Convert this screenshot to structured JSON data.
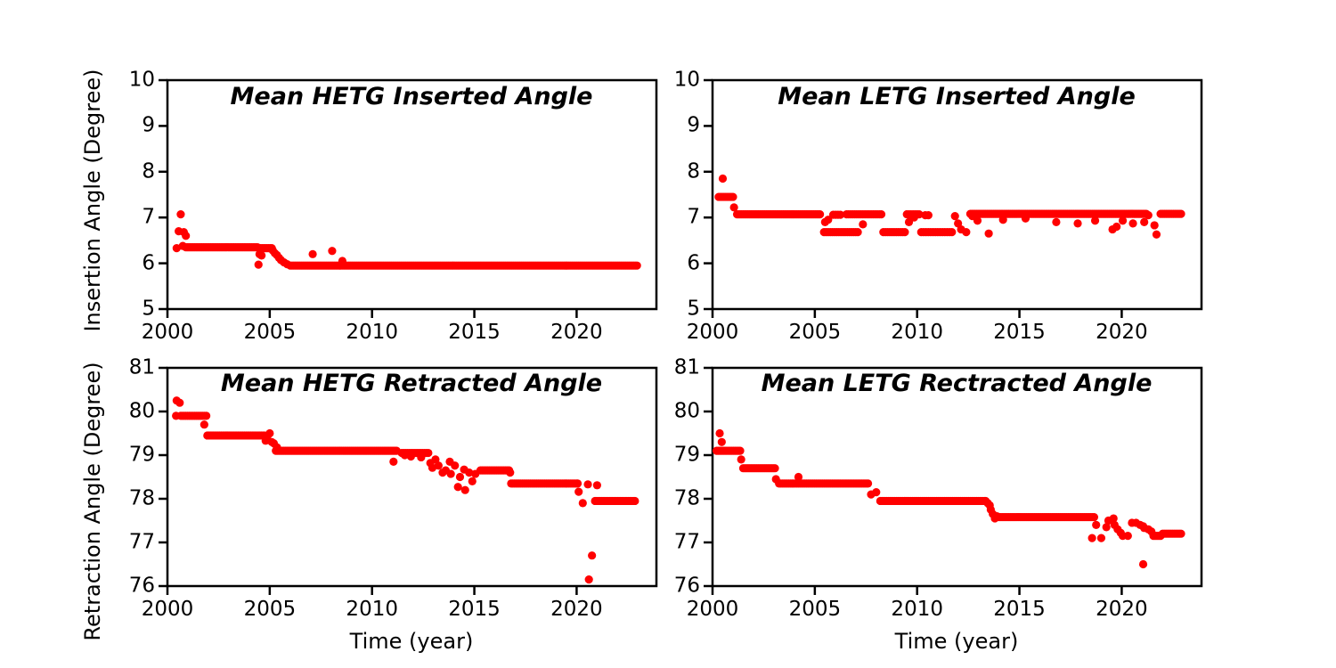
{
  "figure_title": "",
  "marker": {
    "color": "#ff0000",
    "radius": 4.6
  },
  "chart_data": {
    "type": "scatter",
    "x": {
      "label": "Time (year)",
      "ticks": [
        2000,
        2005,
        2010,
        2015,
        2020
      ],
      "range": [
        2000,
        2023.9
      ]
    },
    "panels": [
      {
        "id": "hetg-inserted",
        "title": "Mean HETG Inserted Angle",
        "ylabel": "Insertion Angle (Degree)",
        "ylim": [
          5,
          10
        ],
        "yticks": [
          10,
          9,
          8,
          7,
          6,
          5
        ],
        "runs": [
          {
            "x0": 2000.9,
            "x1": 2004.4,
            "y": 6.35,
            "n": 50
          },
          {
            "x0": 2004.55,
            "x1": 2005.1,
            "y": 6.33,
            "n": 8
          },
          {
            "x0": 2006.0,
            "x1": 2022.95,
            "y": 5.95,
            "n": 220
          }
        ],
        "points": [
          [
            2000.45,
            6.33
          ],
          [
            2000.55,
            6.7
          ],
          [
            2000.65,
            7.07
          ],
          [
            2000.75,
            6.38
          ],
          [
            2000.8,
            6.68
          ],
          [
            2000.9,
            6.6
          ],
          [
            2004.45,
            5.97
          ],
          [
            2004.5,
            6.2
          ],
          [
            2004.6,
            6.17
          ],
          [
            2005.15,
            6.28
          ],
          [
            2005.25,
            6.22
          ],
          [
            2005.35,
            6.18
          ],
          [
            2005.45,
            6.12
          ],
          [
            2005.55,
            6.07
          ],
          [
            2005.7,
            6.02
          ],
          [
            2005.85,
            5.98
          ],
          [
            2007.1,
            6.2
          ],
          [
            2008.05,
            6.27
          ],
          [
            2008.55,
            6.05
          ]
        ]
      },
      {
        "id": "letg-inserted",
        "title": "Mean LETG Inserted Angle",
        "ylabel": "Insertion Angle (Degree)",
        "ylim": [
          5,
          10
        ],
        "yticks": [
          10,
          9,
          8,
          7,
          6,
          5
        ],
        "runs": [
          {
            "x0": 2000.3,
            "x1": 2001.0,
            "y": 7.45,
            "n": 9
          },
          {
            "x0": 2001.2,
            "x1": 2005.25,
            "y": 7.07,
            "n": 55
          },
          {
            "x0": 2005.45,
            "x1": 2007.1,
            "y": 6.68,
            "n": 17
          },
          {
            "x0": 2005.9,
            "x1": 2006.25,
            "y": 7.06,
            "n": 4
          },
          {
            "x0": 2006.55,
            "x1": 2008.25,
            "y": 7.07,
            "n": 18
          },
          {
            "x0": 2008.35,
            "x1": 2009.4,
            "y": 6.68,
            "n": 11
          },
          {
            "x0": 2009.5,
            "x1": 2010.1,
            "y": 7.07,
            "n": 7
          },
          {
            "x0": 2010.2,
            "x1": 2011.7,
            "y": 6.68,
            "n": 14
          },
          {
            "x0": 2012.6,
            "x1": 2021.2,
            "y": 7.08,
            "n": 115
          },
          {
            "x0": 2021.9,
            "x1": 2022.9,
            "y": 7.08,
            "n": 12
          }
        ],
        "points": [
          [
            2000.5,
            7.85
          ],
          [
            2001.05,
            7.22
          ],
          [
            2005.5,
            6.9
          ],
          [
            2005.65,
            6.95
          ],
          [
            2007.35,
            6.85
          ],
          [
            2009.6,
            6.9
          ],
          [
            2009.85,
            7.0
          ],
          [
            2010.4,
            7.05
          ],
          [
            2010.55,
            7.05
          ],
          [
            2011.85,
            7.03
          ],
          [
            2012.0,
            6.87
          ],
          [
            2012.15,
            6.74
          ],
          [
            2012.4,
            6.68
          ],
          [
            2012.7,
            7.03
          ],
          [
            2012.95,
            6.93
          ],
          [
            2013.5,
            6.65
          ],
          [
            2014.2,
            6.95
          ],
          [
            2015.3,
            6.98
          ],
          [
            2016.8,
            6.9
          ],
          [
            2017.85,
            6.87
          ],
          [
            2018.7,
            6.93
          ],
          [
            2019.55,
            6.74
          ],
          [
            2019.75,
            6.8
          ],
          [
            2020.05,
            6.93
          ],
          [
            2020.55,
            6.87
          ],
          [
            2021.1,
            6.9
          ],
          [
            2021.3,
            7.05
          ],
          [
            2021.6,
            6.83
          ],
          [
            2021.7,
            6.63
          ]
        ]
      },
      {
        "id": "hetg-retracted",
        "title": "Mean HETG Retracted Angle",
        "ylabel": "Retraction Angle (Degree)",
        "ylim": [
          76,
          81
        ],
        "yticks": [
          81,
          80,
          79,
          78,
          77,
          76
        ],
        "runs": [
          {
            "x0": 2000.65,
            "x1": 2001.9,
            "y": 79.9,
            "n": 16
          },
          {
            "x0": 2001.95,
            "x1": 2004.75,
            "y": 79.45,
            "n": 38
          },
          {
            "x0": 2005.3,
            "x1": 2011.2,
            "y": 79.1,
            "n": 78
          },
          {
            "x0": 2011.45,
            "x1": 2012.75,
            "y": 79.05,
            "n": 15
          },
          {
            "x0": 2015.3,
            "x1": 2016.7,
            "y": 78.65,
            "n": 17
          },
          {
            "x0": 2016.8,
            "x1": 2020.0,
            "y": 78.35,
            "n": 42
          },
          {
            "x0": 2020.9,
            "x1": 2022.85,
            "y": 77.95,
            "n": 26
          }
        ],
        "points": [
          [
            2000.42,
            79.9
          ],
          [
            2000.45,
            80.25
          ],
          [
            2000.6,
            80.2
          ],
          [
            2001.8,
            79.7
          ],
          [
            2004.8,
            79.33
          ],
          [
            2004.9,
            79.45
          ],
          [
            2005.0,
            79.5
          ],
          [
            2005.1,
            79.3
          ],
          [
            2005.2,
            79.27
          ],
          [
            2005.35,
            79.18
          ],
          [
            2011.05,
            78.85
          ],
          [
            2011.6,
            79.0
          ],
          [
            2011.9,
            78.97
          ],
          [
            2012.4,
            78.95
          ],
          [
            2012.85,
            78.82
          ],
          [
            2012.95,
            78.71
          ],
          [
            2013.1,
            78.9
          ],
          [
            2013.25,
            78.76
          ],
          [
            2013.45,
            78.6
          ],
          [
            2013.6,
            78.65
          ],
          [
            2013.8,
            78.85
          ],
          [
            2013.85,
            78.57
          ],
          [
            2014.05,
            78.76
          ],
          [
            2014.2,
            78.27
          ],
          [
            2014.3,
            78.5
          ],
          [
            2014.5,
            78.67
          ],
          [
            2014.55,
            78.2
          ],
          [
            2014.75,
            78.6
          ],
          [
            2014.9,
            78.4
          ],
          [
            2015.05,
            78.57
          ],
          [
            2016.75,
            78.6
          ],
          [
            2020.05,
            78.35
          ],
          [
            2020.1,
            78.16
          ],
          [
            2020.3,
            77.9
          ],
          [
            2020.55,
            78.33
          ],
          [
            2021.0,
            78.31
          ],
          [
            2020.6,
            76.15
          ],
          [
            2020.75,
            76.7
          ]
        ]
      },
      {
        "id": "letg-retracted",
        "title": "Mean LETG Rectracted Angle",
        "ylabel": "Retraction Angle (Degree)",
        "ylim": [
          76,
          81
        ],
        "yticks": [
          81,
          80,
          79,
          78,
          77,
          76
        ],
        "runs": [
          {
            "x0": 2000.2,
            "x1": 2001.35,
            "y": 79.1,
            "n": 15
          },
          {
            "x0": 2001.5,
            "x1": 2003.05,
            "y": 78.7,
            "n": 20
          },
          {
            "x0": 2003.25,
            "x1": 2007.6,
            "y": 78.35,
            "n": 56
          },
          {
            "x0": 2008.2,
            "x1": 2013.3,
            "y": 77.95,
            "n": 66
          },
          {
            "x0": 2014.0,
            "x1": 2018.65,
            "y": 77.58,
            "n": 60
          },
          {
            "x0": 2021.55,
            "x1": 2021.9,
            "y": 77.15,
            "n": 5
          },
          {
            "x0": 2022.0,
            "x1": 2022.9,
            "y": 77.2,
            "n": 12
          }
        ],
        "points": [
          [
            2000.35,
            79.5
          ],
          [
            2000.45,
            79.3
          ],
          [
            2001.4,
            78.9
          ],
          [
            2003.1,
            78.45
          ],
          [
            2004.2,
            78.5
          ],
          [
            2007.75,
            78.1
          ],
          [
            2008.0,
            78.15
          ],
          [
            2013.35,
            77.95
          ],
          [
            2013.45,
            77.9
          ],
          [
            2013.55,
            77.85
          ],
          [
            2013.6,
            77.75
          ],
          [
            2013.7,
            77.65
          ],
          [
            2013.8,
            77.55
          ],
          [
            2013.9,
            77.6
          ],
          [
            2018.55,
            77.1
          ],
          [
            2018.75,
            77.4
          ],
          [
            2019.0,
            77.1
          ],
          [
            2019.25,
            77.35
          ],
          [
            2019.35,
            77.5
          ],
          [
            2019.6,
            77.55
          ],
          [
            2019.65,
            77.4
          ],
          [
            2019.8,
            77.3
          ],
          [
            2019.95,
            77.22
          ],
          [
            2020.05,
            77.15
          ],
          [
            2020.3,
            77.15
          ],
          [
            2020.5,
            77.45
          ],
          [
            2020.7,
            77.45
          ],
          [
            2020.9,
            77.4
          ],
          [
            2021.05,
            77.37
          ],
          [
            2021.1,
            77.33
          ],
          [
            2021.3,
            77.3
          ],
          [
            2021.45,
            77.25
          ],
          [
            2021.05,
            76.5
          ]
        ]
      }
    ]
  }
}
